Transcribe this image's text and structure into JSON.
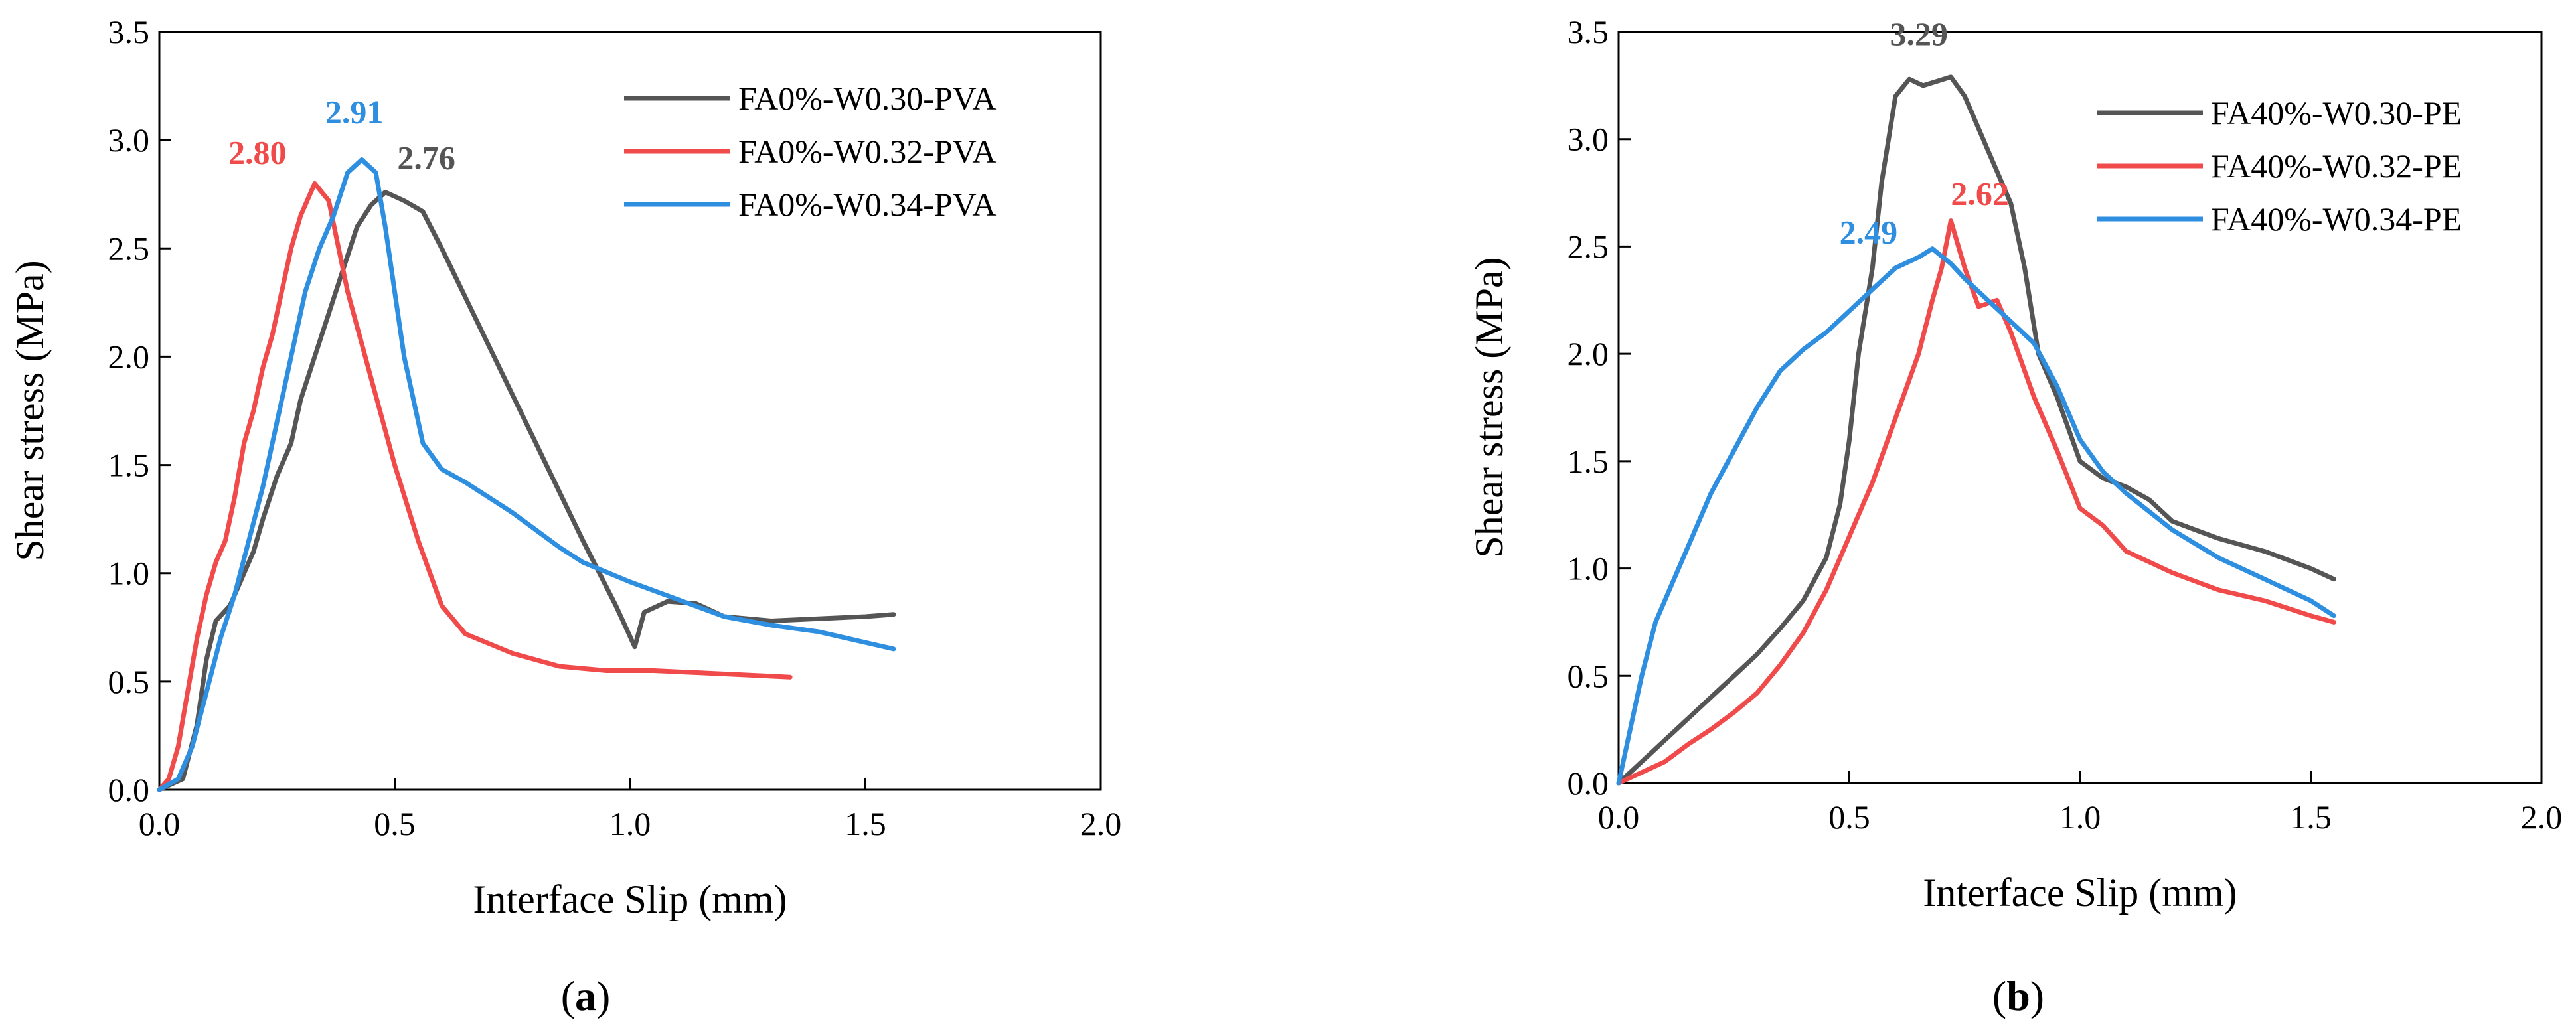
{
  "chart_data": [
    {
      "type": "line",
      "panel_label": "(a)",
      "xlabel": "Interface Slip (mm)",
      "ylabel": "Shear stress (MPa)",
      "xlim": [
        0,
        2.0
      ],
      "ylim": [
        0,
        3.5
      ],
      "xticks": [
        "0.0",
        "0.5",
        "1.0",
        "1.5",
        "2.0"
      ],
      "yticks": [
        "0.0",
        "0.5",
        "1.0",
        "1.5",
        "2.0",
        "2.5",
        "3.0",
        "3.5"
      ],
      "legend_position": "top-right",
      "series": [
        {
          "name": "FA0%-W0.30-PVA",
          "color": "#555555",
          "peak_label": "2.76",
          "peak": [
            0.48,
            2.76
          ],
          "points": [
            [
              0,
              0
            ],
            [
              0.05,
              0.05
            ],
            [
              0.08,
              0.3
            ],
            [
              0.1,
              0.6
            ],
            [
              0.12,
              0.78
            ],
            [
              0.15,
              0.85
            ],
            [
              0.18,
              1.0
            ],
            [
              0.2,
              1.1
            ],
            [
              0.22,
              1.25
            ],
            [
              0.25,
              1.45
            ],
            [
              0.28,
              1.6
            ],
            [
              0.3,
              1.8
            ],
            [
              0.33,
              2.0
            ],
            [
              0.36,
              2.2
            ],
            [
              0.39,
              2.4
            ],
            [
              0.42,
              2.6
            ],
            [
              0.45,
              2.7
            ],
            [
              0.48,
              2.76
            ],
            [
              0.52,
              2.72
            ],
            [
              0.56,
              2.67
            ],
            [
              0.6,
              2.5
            ],
            [
              0.7,
              2.05
            ],
            [
              0.8,
              1.6
            ],
            [
              0.9,
              1.15
            ],
            [
              0.97,
              0.85
            ],
            [
              1.01,
              0.66
            ],
            [
              1.03,
              0.82
            ],
            [
              1.08,
              0.87
            ],
            [
              1.14,
              0.86
            ],
            [
              1.2,
              0.8
            ],
            [
              1.3,
              0.78
            ],
            [
              1.4,
              0.79
            ],
            [
              1.5,
              0.8
            ],
            [
              1.56,
              0.81
            ]
          ]
        },
        {
          "name": "FA0%-W0.32-PVA",
          "color": "#f04a4a",
          "peak_label": "2.80",
          "peak": [
            0.33,
            2.8
          ],
          "points": [
            [
              0,
              0
            ],
            [
              0.02,
              0.05
            ],
            [
              0.04,
              0.2
            ],
            [
              0.06,
              0.45
            ],
            [
              0.08,
              0.7
            ],
            [
              0.1,
              0.9
            ],
            [
              0.12,
              1.05
            ],
            [
              0.14,
              1.15
            ],
            [
              0.16,
              1.35
            ],
            [
              0.18,
              1.6
            ],
            [
              0.2,
              1.75
            ],
            [
              0.22,
              1.95
            ],
            [
              0.24,
              2.1
            ],
            [
              0.26,
              2.3
            ],
            [
              0.28,
              2.5
            ],
            [
              0.3,
              2.65
            ],
            [
              0.33,
              2.8
            ],
            [
              0.36,
              2.72
            ],
            [
              0.4,
              2.3
            ],
            [
              0.45,
              1.9
            ],
            [
              0.5,
              1.5
            ],
            [
              0.55,
              1.15
            ],
            [
              0.6,
              0.85
            ],
            [
              0.65,
              0.72
            ],
            [
              0.75,
              0.63
            ],
            [
              0.85,
              0.57
            ],
            [
              0.95,
              0.55
            ],
            [
              1.05,
              0.55
            ],
            [
              1.15,
              0.54
            ],
            [
              1.25,
              0.53
            ],
            [
              1.34,
              0.52
            ]
          ]
        },
        {
          "name": "FA0%-W0.34-PVA",
          "color": "#2e8ee0",
          "peak_label": "2.91",
          "peak": [
            0.43,
            2.91
          ],
          "points": [
            [
              0,
              0
            ],
            [
              0.04,
              0.05
            ],
            [
              0.07,
              0.2
            ],
            [
              0.1,
              0.45
            ],
            [
              0.13,
              0.7
            ],
            [
              0.16,
              0.9
            ],
            [
              0.19,
              1.15
            ],
            [
              0.22,
              1.4
            ],
            [
              0.25,
              1.7
            ],
            [
              0.28,
              2.0
            ],
            [
              0.31,
              2.3
            ],
            [
              0.34,
              2.5
            ],
            [
              0.37,
              2.65
            ],
            [
              0.4,
              2.85
            ],
            [
              0.43,
              2.91
            ],
            [
              0.46,
              2.85
            ],
            [
              0.48,
              2.6
            ],
            [
              0.52,
              2.0
            ],
            [
              0.56,
              1.6
            ],
            [
              0.6,
              1.48
            ],
            [
              0.65,
              1.42
            ],
            [
              0.7,
              1.35
            ],
            [
              0.75,
              1.28
            ],
            [
              0.8,
              1.2
            ],
            [
              0.85,
              1.12
            ],
            [
              0.9,
              1.05
            ],
            [
              1.0,
              0.96
            ],
            [
              1.1,
              0.88
            ],
            [
              1.2,
              0.8
            ],
            [
              1.3,
              0.76
            ],
            [
              1.4,
              0.73
            ],
            [
              1.5,
              0.68
            ],
            [
              1.56,
              0.65
            ]
          ]
        }
      ]
    },
    {
      "type": "line",
      "panel_label": "(b)",
      "xlabel": "Interface Slip (mm)",
      "ylabel": "Shear stress (MPa)",
      "xlim": [
        0,
        2.0
      ],
      "ylim": [
        0,
        3.5
      ],
      "xticks": [
        "0.0",
        "0.5",
        "1.0",
        "1.5",
        "2.0"
      ],
      "yticks": [
        "0.0",
        "0.5",
        "1.0",
        "1.5",
        "2.0",
        "2.5",
        "3.0",
        "3.5"
      ],
      "legend_position": "top-right",
      "series": [
        {
          "name": "FA40%-W0.30-PE",
          "color": "#555555",
          "peak_label": "3.29",
          "peak": [
            0.71,
            3.29
          ],
          "points": [
            [
              0,
              0
            ],
            [
              0.05,
              0.1
            ],
            [
              0.1,
              0.2
            ],
            [
              0.15,
              0.3
            ],
            [
              0.2,
              0.4
            ],
            [
              0.25,
              0.5
            ],
            [
              0.3,
              0.6
            ],
            [
              0.35,
              0.72
            ],
            [
              0.4,
              0.85
            ],
            [
              0.45,
              1.05
            ],
            [
              0.48,
              1.3
            ],
            [
              0.5,
              1.6
            ],
            [
              0.52,
              2.0
            ],
            [
              0.55,
              2.4
            ],
            [
              0.57,
              2.8
            ],
            [
              0.6,
              3.2
            ],
            [
              0.63,
              3.28
            ],
            [
              0.66,
              3.25
            ],
            [
              0.69,
              3.27
            ],
            [
              0.72,
              3.29
            ],
            [
              0.75,
              3.2
            ],
            [
              0.8,
              2.95
            ],
            [
              0.85,
              2.7
            ],
            [
              0.88,
              2.4
            ],
            [
              0.91,
              2.0
            ],
            [
              0.95,
              1.8
            ],
            [
              1.0,
              1.5
            ],
            [
              1.05,
              1.42
            ],
            [
              1.1,
              1.38
            ],
            [
              1.15,
              1.32
            ],
            [
              1.2,
              1.22
            ],
            [
              1.3,
              1.14
            ],
            [
              1.4,
              1.08
            ],
            [
              1.5,
              1.0
            ],
            [
              1.55,
              0.95
            ]
          ]
        },
        {
          "name": "FA40%-W0.32-PE",
          "color": "#f04a4a",
          "peak_label": "2.62",
          "peak": [
            0.72,
            2.62
          ],
          "points": [
            [
              0,
              0
            ],
            [
              0.05,
              0.05
            ],
            [
              0.1,
              0.1
            ],
            [
              0.15,
              0.18
            ],
            [
              0.2,
              0.25
            ],
            [
              0.25,
              0.33
            ],
            [
              0.3,
              0.42
            ],
            [
              0.35,
              0.55
            ],
            [
              0.4,
              0.7
            ],
            [
              0.45,
              0.9
            ],
            [
              0.5,
              1.15
            ],
            [
              0.55,
              1.4
            ],
            [
              0.6,
              1.7
            ],
            [
              0.65,
              2.0
            ],
            [
              0.68,
              2.25
            ],
            [
              0.7,
              2.4
            ],
            [
              0.72,
              2.62
            ],
            [
              0.75,
              2.4
            ],
            [
              0.78,
              2.22
            ],
            [
              0.82,
              2.25
            ],
            [
              0.85,
              2.1
            ],
            [
              0.9,
              1.8
            ],
            [
              0.95,
              1.55
            ],
            [
              1.0,
              1.28
            ],
            [
              1.05,
              1.2
            ],
            [
              1.1,
              1.08
            ],
            [
              1.2,
              0.98
            ],
            [
              1.3,
              0.9
            ],
            [
              1.4,
              0.85
            ],
            [
              1.5,
              0.78
            ],
            [
              1.55,
              0.75
            ]
          ]
        },
        {
          "name": "FA40%-W0.34-PE",
          "color": "#2e8ee0",
          "peak_label": "2.49",
          "peak": [
            0.68,
            2.49
          ],
          "points": [
            [
              0,
              0
            ],
            [
              0.02,
              0.2
            ],
            [
              0.05,
              0.5
            ],
            [
              0.08,
              0.75
            ],
            [
              0.12,
              0.95
            ],
            [
              0.16,
              1.15
            ],
            [
              0.2,
              1.35
            ],
            [
              0.25,
              1.55
            ],
            [
              0.3,
              1.75
            ],
            [
              0.35,
              1.92
            ],
            [
              0.4,
              2.02
            ],
            [
              0.45,
              2.1
            ],
            [
              0.5,
              2.2
            ],
            [
              0.55,
              2.3
            ],
            [
              0.6,
              2.4
            ],
            [
              0.65,
              2.45
            ],
            [
              0.68,
              2.49
            ],
            [
              0.72,
              2.42
            ],
            [
              0.75,
              2.35
            ],
            [
              0.8,
              2.25
            ],
            [
              0.85,
              2.15
            ],
            [
              0.9,
              2.05
            ],
            [
              0.95,
              1.85
            ],
            [
              1.0,
              1.6
            ],
            [
              1.05,
              1.45
            ],
            [
              1.1,
              1.35
            ],
            [
              1.2,
              1.18
            ],
            [
              1.3,
              1.05
            ],
            [
              1.4,
              0.95
            ],
            [
              1.5,
              0.85
            ],
            [
              1.55,
              0.78
            ]
          ]
        }
      ]
    }
  ]
}
